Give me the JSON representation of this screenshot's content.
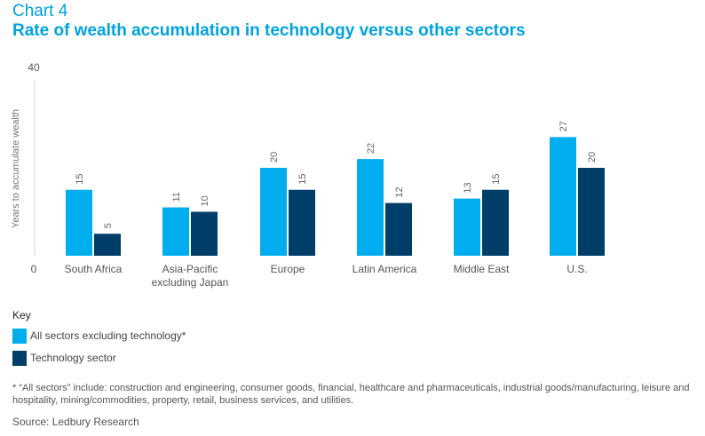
{
  "header": {
    "label": "Chart 4",
    "title": "Rate of wealth accumulation in technology versus other sectors"
  },
  "colors": {
    "accent": "#00a3e0",
    "series_all": "#00aeef",
    "series_tech": "#003e6a",
    "axis_text": "#555555"
  },
  "chart_data": {
    "type": "bar",
    "title": "Rate of wealth accumulation in technology versus other sectors",
    "xlabel": "",
    "ylabel": "Years to accumulate wealth",
    "ylim": [
      0,
      40
    ],
    "yticks": [
      "0",
      "40"
    ],
    "grid": false,
    "legend_position": "bottom-left",
    "categories": [
      [
        "South Africa"
      ],
      [
        "Asia-Pacific",
        "excluding Japan"
      ],
      [
        "Europe"
      ],
      [
        "Latin America"
      ],
      [
        "Middle East"
      ],
      [
        "U.S."
      ]
    ],
    "series": [
      {
        "name": "All sectors excluding technology*",
        "color": "#00aeef",
        "values": [
          15,
          11,
          20,
          22,
          13,
          27
        ]
      },
      {
        "name": "Technology sector",
        "color": "#003e6a",
        "values": [
          5,
          10,
          15,
          12,
          15,
          20
        ]
      }
    ]
  },
  "legend": {
    "heading": "Key",
    "items": [
      {
        "label": "All sectors excluding technology*",
        "color": "#00aeef"
      },
      {
        "label": "Technology sector",
        "color": "#003e6a"
      }
    ]
  },
  "footnote": "* “All sectors” include: construction and engineering, consumer goods, financial, healthcare and pharmaceuticals, industrial goods/manufacturing, leisure and hospitality, mining/commodities, property, retail, business services, and utilities.",
  "source": "Source: Ledbury Research"
}
